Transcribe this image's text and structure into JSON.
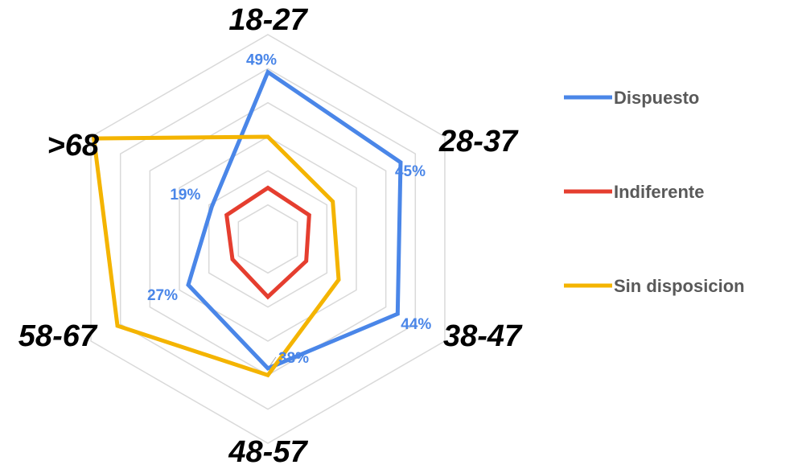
{
  "chart_data": {
    "type": "radar",
    "categories": [
      "18-27",
      "28-37",
      "38-47",
      "48-57",
      "58-67",
      ">68"
    ],
    "rmax": 60,
    "grid_step": 10,
    "series": [
      {
        "name": "Dispuesto",
        "color": "#4A86E8",
        "values": [
          49,
          45,
          44,
          38,
          27,
          19
        ],
        "labels": [
          "49%",
          "45%",
          "44%",
          "38%",
          "27%",
          "19%"
        ]
      },
      {
        "name": "Indiferente",
        "color": "#E53E2F",
        "values": [
          15,
          14,
          13,
          17,
          12,
          14
        ]
      },
      {
        "name": "Sin disposicion",
        "color": "#F4B400",
        "values": [
          30,
          22,
          24,
          40,
          51,
          59
        ]
      }
    ],
    "legend_position": "right"
  }
}
